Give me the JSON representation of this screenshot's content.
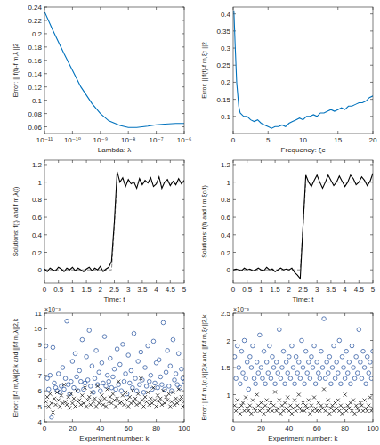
{
  "chart_data": [
    {
      "type": "line",
      "log": "x",
      "x_label": "Lambda: λ",
      "y_label": "Error: || f(t)-f m,λ ||2",
      "xlim": [
        1e-11,
        1e-06
      ],
      "xticks": [
        {
          "value": 1e-11,
          "label": "10⁻¹¹"
        },
        {
          "value": 1e-10,
          "label": "10⁻¹⁰"
        },
        {
          "value": 1e-09,
          "label": "10⁻⁹"
        },
        {
          "value": 1e-08,
          "label": "10⁻⁸"
        },
        {
          "value": 1e-07,
          "label": "10⁻⁷"
        },
        {
          "value": 1e-06,
          "label": "10⁻⁶"
        }
      ],
      "ylim": [
        0.05,
        0.24
      ],
      "yticks": [
        0.06,
        0.08,
        0.1,
        0.12,
        0.14,
        0.16,
        0.18,
        0.2,
        0.22,
        0.24
      ],
      "series": [
        {
          "color": "#0072bd",
          "line_style": "solid",
          "x": [
            1e-11,
            2e-11,
            5e-11,
            1e-10,
            2e-10,
            5e-10,
            1e-09,
            2e-09,
            5e-09,
            1e-08,
            2e-08,
            5e-08,
            1e-07,
            2e-07,
            5e-07,
            1e-06
          ],
          "values": [
            0.233,
            0.205,
            0.17,
            0.145,
            0.12,
            0.095,
            0.08,
            0.069,
            0.062,
            0.059,
            0.059,
            0.061,
            0.063,
            0.064,
            0.065,
            0.065
          ]
        }
      ]
    },
    {
      "type": "line",
      "x_label": "Frequency: ξc",
      "y_label": "Error: || f(t)-f m,ξc ||2",
      "xlim": [
        0,
        20
      ],
      "xticks": [
        0,
        5,
        10,
        15,
        20
      ],
      "ylim": [
        0.05,
        0.42
      ],
      "yticks": [
        0.1,
        0.15,
        0.2,
        0.25,
        0.3,
        0.35,
        0.4
      ],
      "series": [
        {
          "color": "#0072bd",
          "line_style": "solid",
          "x": [
            0.1,
            0.3,
            0.5,
            0.8,
            1,
            1.5,
            2,
            2.5,
            3,
            3.5,
            4,
            4.5,
            5,
            5.5,
            6,
            6.5,
            7,
            7.5,
            8,
            8.5,
            9,
            9.5,
            10,
            10.5,
            11,
            11.5,
            12,
            12.5,
            13,
            13.5,
            14,
            14.5,
            15,
            15.5,
            16,
            16.5,
            17,
            17.5,
            18,
            18.5,
            19,
            19.5,
            20
          ],
          "values": [
            0.41,
            0.3,
            0.2,
            0.13,
            0.11,
            0.1,
            0.1,
            0.09,
            0.085,
            0.09,
            0.08,
            0.075,
            0.07,
            0.065,
            0.07,
            0.07,
            0.075,
            0.07,
            0.08,
            0.085,
            0.09,
            0.095,
            0.09,
            0.1,
            0.1,
            0.105,
            0.1,
            0.11,
            0.11,
            0.115,
            0.12,
            0.115,
            0.12,
            0.125,
            0.12,
            0.13,
            0.13,
            0.135,
            0.14,
            0.14,
            0.145,
            0.155,
            0.16
          ]
        }
      ]
    },
    {
      "type": "line",
      "x_label": "Time: t",
      "y_label": "Solutions: f(t) and f m,λ(t)",
      "xlim": [
        0,
        5
      ],
      "xticks": [
        0,
        0.5,
        1,
        1.5,
        2,
        2.5,
        3,
        3.5,
        4,
        4.5,
        5
      ],
      "ylim": [
        -0.15,
        1.25
      ],
      "yticks": [
        0,
        0.2,
        0.4,
        0.6,
        0.8,
        1,
        1.2
      ],
      "series": [
        {
          "color": "#808080",
          "line_style": "dashed",
          "x": [
            0,
            2.4,
            2.6,
            5
          ],
          "values": [
            0,
            0,
            1,
            1
          ]
        },
        {
          "color": "#000000",
          "line_style": "solid",
          "x": [
            0,
            0.1,
            0.2,
            0.3,
            0.4,
            0.5,
            0.6,
            0.7,
            0.8,
            0.9,
            1,
            1.1,
            1.2,
            1.3,
            1.4,
            1.5,
            1.6,
            1.7,
            1.8,
            1.9,
            2,
            2.1,
            2.2,
            2.3,
            2.4,
            2.5,
            2.6,
            2.7,
            2.8,
            2.9,
            3,
            3.1,
            3.2,
            3.3,
            3.4,
            3.5,
            3.6,
            3.7,
            3.8,
            3.9,
            4,
            4.1,
            4.2,
            4.3,
            4.4,
            4.5,
            4.6,
            4.7,
            4.8,
            4.9,
            5
          ],
          "values": [
            0.01,
            -0.02,
            0.02,
            0,
            -0.01,
            0.03,
            0.01,
            -0.02,
            0.02,
            0,
            0.03,
            -0.01,
            0.02,
            0,
            -0.02,
            0.01,
            0.03,
            -0.01,
            0.02,
            0,
            0.04,
            -0.02,
            0.01,
            0.03,
            0.1,
            0.55,
            1.12,
            1,
            1.05,
            0.95,
            1.03,
            0.98,
            1,
            0.93,
            1.04,
            0.97,
            1.02,
            0.99,
            1.05,
            0.95,
            0.98,
            1.06,
            0.93,
            1,
            1.03,
            0.96,
            1.01,
            0.97,
            1.04,
            0.98,
            1.02
          ]
        }
      ]
    },
    {
      "type": "line",
      "x_label": "Time: t",
      "y_label": "Solutions: f(t) and f m,ξc(t)",
      "xlim": [
        0,
        5
      ],
      "xticks": [
        0,
        0.5,
        1,
        1.5,
        2,
        2.5,
        3,
        3.5,
        4,
        4.5,
        5
      ],
      "ylim": [
        -0.15,
        1.25
      ],
      "yticks": [
        0,
        0.2,
        0.4,
        0.6,
        0.8,
        1,
        1.2
      ],
      "series": [
        {
          "color": "#808080",
          "line_style": "dashed",
          "x": [
            0,
            2.4,
            2.6,
            5
          ],
          "values": [
            0,
            0,
            1,
            1
          ]
        },
        {
          "color": "#000000",
          "line_style": "solid",
          "x": [
            0,
            0.1,
            0.2,
            0.3,
            0.4,
            0.5,
            0.6,
            0.7,
            0.8,
            0.9,
            1,
            1.1,
            1.2,
            1.3,
            1.4,
            1.5,
            1.6,
            1.7,
            1.8,
            1.9,
            2,
            2.1,
            2.2,
            2.3,
            2.4,
            2.5,
            2.6,
            2.7,
            2.8,
            2.9,
            3,
            3.1,
            3.2,
            3.3,
            3.4,
            3.5,
            3.6,
            3.7,
            3.8,
            3.9,
            4,
            4.1,
            4.2,
            4.3,
            4.4,
            4.5,
            4.6,
            4.7,
            4.8,
            4.9,
            5
          ],
          "values": [
            0,
            0.01,
            0,
            -0.01,
            0.02,
            0,
            0.01,
            -0.01,
            0,
            0.02,
            0,
            -0.01,
            0.03,
            0,
            0.01,
            -0.02,
            0,
            0.02,
            0,
            0.01,
            0,
            0.02,
            -0.03,
            -0.06,
            -0.1,
            0.5,
            1.08,
            1,
            0.95,
            1.02,
            1.08,
            1,
            0.93,
            1,
            1.08,
            1.02,
            0.96,
            1,
            1.07,
            1.01,
            0.95,
            1,
            1.08,
            1.04,
            0.97,
            1,
            1.06,
            1.02,
            0.96,
            1.01,
            1.1
          ]
        }
      ]
    },
    {
      "type": "scatter",
      "x_label": "Experiment number: k",
      "y_label": "Error: ||f-f m,λk||2,k and ||f-f m,λ||2,k",
      "annotation": "×10⁻³",
      "xlim": [
        0,
        100
      ],
      "xticks": [
        0,
        20,
        40,
        60,
        80,
        100
      ],
      "ylim": [
        4,
        11
      ],
      "yticks": [
        4,
        5,
        6,
        7,
        8,
        9,
        10,
        11
      ],
      "x": [
        1,
        2,
        3,
        4,
        5,
        6,
        7,
        8,
        9,
        10,
        11,
        12,
        13,
        14,
        15,
        16,
        17,
        18,
        19,
        20,
        21,
        22,
        23,
        24,
        25,
        26,
        27,
        28,
        29,
        30,
        31,
        32,
        33,
        34,
        35,
        36,
        37,
        38,
        39,
        40,
        41,
        42,
        43,
        44,
        45,
        46,
        47,
        48,
        49,
        50,
        51,
        52,
        53,
        54,
        55,
        56,
        57,
        58,
        59,
        60,
        61,
        62,
        63,
        64,
        65,
        66,
        67,
        68,
        69,
        70,
        71,
        72,
        73,
        74,
        75,
        76,
        77,
        78,
        79,
        80,
        81,
        82,
        83,
        84,
        85,
        86,
        87,
        88,
        89,
        90,
        91,
        92,
        93,
        94,
        95,
        96,
        97,
        98,
        99,
        100
      ],
      "series": [
        {
          "color": "#1f4e9c",
          "marker": "o",
          "values": [
            8.9,
            6.8,
            6.1,
            7.0,
            4.3,
            8.8,
            6.5,
            6.2,
            6.0,
            7.1,
            5.9,
            6.3,
            7.5,
            6.1,
            6.8,
            10.5,
            6.4,
            5.8,
            6.6,
            7.9,
            6.2,
            8.4,
            6.9,
            6.0,
            7.3,
            6.6,
            9.3,
            6.1,
            6.5,
            8.2,
            6.7,
            9.9,
            6.3,
            7.6,
            5.9,
            6.8,
            8.6,
            6.4,
            7.2,
            6.0,
            7.8,
            6.5,
            9.5,
            6.3,
            7.0,
            6.6,
            8.1,
            6.2,
            6.9,
            7.4,
            6.1,
            8.7,
            6.4,
            7.7,
            6.0,
            9.0,
            6.6,
            7.1,
            5.8,
            8.3,
            6.5,
            7.3,
            6.2,
            9.7,
            6.8,
            6.0,
            7.9,
            6.4,
            8.5,
            6.7,
            5.9,
            7.5,
            6.3,
            8.9,
            6.6,
            7.0,
            6.1,
            9.2,
            6.5,
            7.8,
            6.2,
            8.0,
            6.9,
            6.4,
            10.4,
            6.1,
            7.2,
            8.6,
            6.3,
            7.6,
            6.0,
            9.3,
            6.7,
            7.1,
            6.4,
            8.4,
            6.2,
            7.4,
            6.8,
            6.6
          ]
        },
        {
          "color": "#000000",
          "marker": "x",
          "values": [
            5.3,
            5.6,
            5.0,
            5.8,
            5.2,
            4.6,
            5.5,
            5.1,
            5.9,
            5.4,
            5.0,
            5.7,
            5.2,
            6.4,
            5.3,
            5.1,
            5.6,
            4.9,
            5.8,
            5.2,
            5.5,
            5.0,
            6.0,
            5.3,
            5.4,
            5.1,
            5.7,
            5.2,
            6.2,
            5.0,
            5.4,
            5.6,
            5.1,
            5.9,
            5.3,
            5.5,
            5.0,
            6.3,
            5.2,
            5.4,
            5.7,
            5.1,
            5.5,
            5.0,
            6.1,
            5.3,
            5.6,
            5.2,
            5.8,
            5.4,
            5.0,
            5.5,
            6.6,
            5.2,
            5.3,
            5.7,
            5.1,
            5.9,
            5.4,
            5.0,
            5.6,
            5.2,
            6.0,
            5.3,
            5.5,
            5.1,
            5.8,
            5.2,
            6.8,
            5.4,
            5.0,
            5.6,
            5.3,
            5.9,
            5.1,
            5.5,
            5.2,
            6.2,
            5.4,
            5.0,
            5.7,
            5.3,
            5.5,
            5.1,
            6.0,
            5.2,
            5.6,
            5.4,
            5.8,
            5.0,
            5.3,
            5.9,
            5.1,
            5.5,
            5.2,
            6.1,
            5.4,
            5.6,
            5.0,
            5.3
          ]
        }
      ]
    },
    {
      "type": "scatter",
      "x_label": "Experiment number: k",
      "y_label": "Error: ||f-f m,ξc,k||2,k and ||f-f m,ξc||2,k",
      "annotation": "×10⁻³",
      "xlim": [
        0,
        100
      ],
      "xticks": [
        0,
        20,
        40,
        60,
        80,
        100
      ],
      "ylim": [
        0.5,
        2.5
      ],
      "yticks": [
        1,
        1.5,
        2,
        2.5
      ],
      "x": [
        1,
        2,
        3,
        4,
        5,
        6,
        7,
        8,
        9,
        10,
        11,
        12,
        13,
        14,
        15,
        16,
        17,
        18,
        19,
        20,
        21,
        22,
        23,
        24,
        25,
        26,
        27,
        28,
        29,
        30,
        31,
        32,
        33,
        34,
        35,
        36,
        37,
        38,
        39,
        40,
        41,
        42,
        43,
        44,
        45,
        46,
        47,
        48,
        49,
        50,
        51,
        52,
        53,
        54,
        55,
        56,
        57,
        58,
        59,
        60,
        61,
        62,
        63,
        64,
        65,
        66,
        67,
        68,
        69,
        70,
        71,
        72,
        73,
        74,
        75,
        76,
        77,
        78,
        79,
        80,
        81,
        82,
        83,
        84,
        85,
        86,
        87,
        88,
        89,
        90,
        91,
        92,
        93,
        94,
        95,
        96,
        97,
        98,
        99,
        100
      ],
      "series": [
        {
          "color": "#1f4e9c",
          "marker": "o",
          "values": [
            1.7,
            1.3,
            1.9,
            1.5,
            1.2,
            1.8,
            1.4,
            2.0,
            1.3,
            1.6,
            1.1,
            1.7,
            1.5,
            1.9,
            1.3,
            1.2,
            1.6,
            1.4,
            2.1,
            1.5,
            1.3,
            1.8,
            1.2,
            1.6,
            1.4,
            1.9,
            1.3,
            1.7,
            1.5,
            1.2,
            1.6,
            1.4,
            2.2,
            1.3,
            1.5,
            1.8,
            1.2,
            1.6,
            1.4,
            1.7,
            1.3,
            1.9,
            1.5,
            1.2,
            1.7,
            1.4,
            1.6,
            1.3,
            2.0,
            1.5,
            1.2,
            1.8,
            1.4,
            1.6,
            1.3,
            1.7,
            1.5,
            1.9,
            1.2,
            1.6,
            1.4,
            1.3,
            1.8,
            1.5,
            2.4,
            1.3,
            1.6,
            1.4,
            1.7,
            1.2,
            1.5,
            1.9,
            1.3,
            1.6,
            1.4,
            2.0,
            1.2,
            1.7,
            1.5,
            1.3,
            1.8,
            1.4,
            1.6,
            1.2,
            1.9,
            1.5,
            1.3,
            1.7,
            1.4,
            2.2,
            1.6,
            1.3,
            1.8,
            1.5,
            1.2,
            1.7,
            1.4,
            1.6,
            1.3,
            1.8
          ]
        },
        {
          "color": "#000000",
          "marker": "x",
          "values": [
            0.8,
            0.7,
            0.9,
            0.75,
            0.65,
            0.8,
            0.85,
            0.7,
            0.95,
            0.75,
            0.7,
            0.8,
            0.65,
            0.9,
            0.75,
            0.7,
            1.0,
            0.8,
            0.7,
            0.85,
            0.75,
            0.65,
            0.8,
            0.9,
            0.7,
            0.75,
            0.85,
            0.7,
            0.8,
            1.05,
            0.7,
            0.75,
            0.9,
            0.65,
            0.8,
            0.7,
            0.85,
            0.75,
            0.95,
            0.7,
            0.8,
            0.65,
            0.75,
            0.9,
            0.7,
            0.8,
            1.0,
            0.75,
            0.7,
            0.85,
            0.7,
            0.8,
            0.75,
            0.9,
            0.65,
            0.8,
            0.7,
            0.95,
            0.75,
            0.7,
            0.85,
            0.7,
            0.8,
            0.75,
            1.1,
            0.7,
            0.8,
            0.9,
            0.65,
            0.75,
            0.8,
            0.7,
            0.85,
            0.75,
            0.9,
            0.7,
            0.8,
            0.65,
            0.75,
            1.0,
            0.7,
            0.8,
            0.75,
            0.85,
            0.7,
            0.9,
            0.65,
            0.8,
            0.75,
            0.7,
            0.85,
            0.8,
            0.7,
            0.9,
            0.75,
            0.7,
            0.8,
            0.95,
            0.7,
            0.75
          ]
        }
      ]
    }
  ]
}
